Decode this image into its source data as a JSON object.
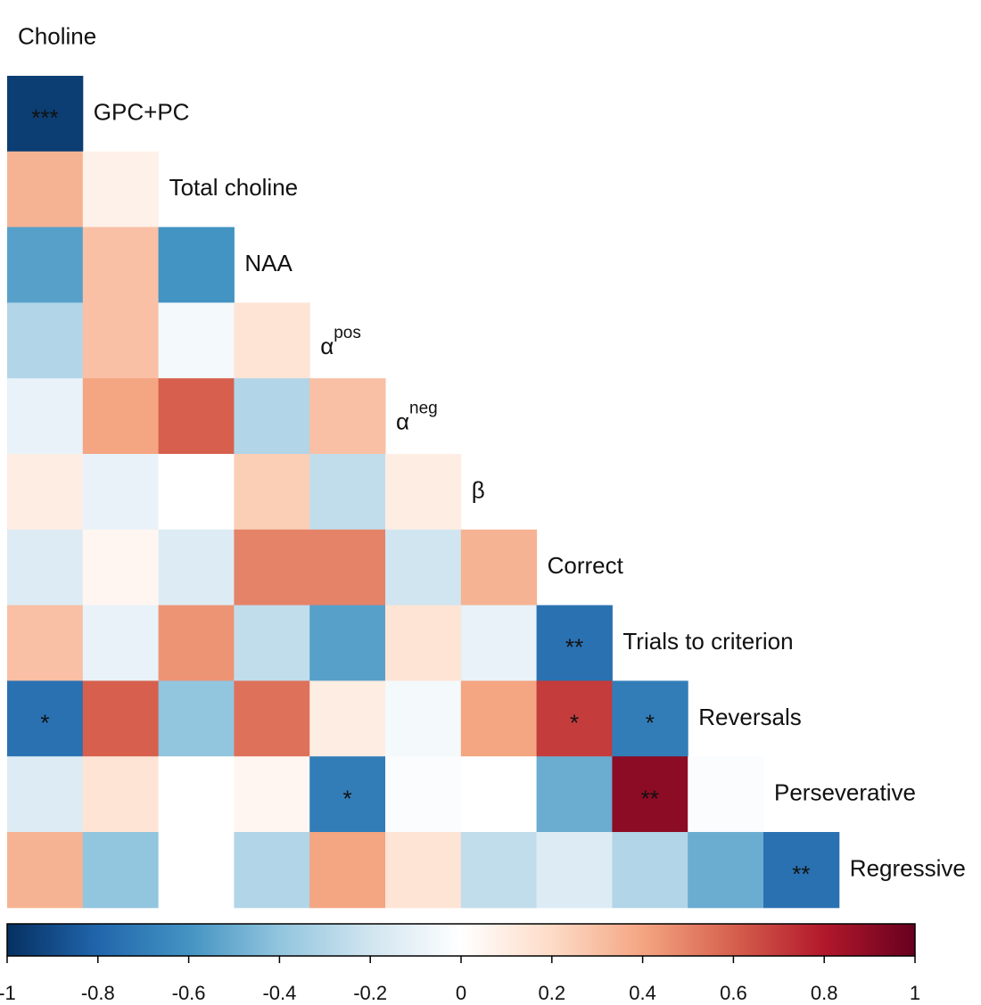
{
  "chart_data": {
    "type": "heatmap",
    "variables": [
      {
        "name": "Choline"
      },
      {
        "name": "GPC+PC"
      },
      {
        "name": "Total choline"
      },
      {
        "name": "NAA"
      },
      {
        "name": "α",
        "sup": "pos"
      },
      {
        "name": "α",
        "sup": "neg"
      },
      {
        "name": "β"
      },
      {
        "name": "Correct"
      },
      {
        "name": "Trials to criterion"
      },
      {
        "name": "Reversals"
      },
      {
        "name": "Perseverative"
      },
      {
        "name": "Regressive"
      }
    ],
    "rows": [
      {
        "values": [
          -0.95
        ],
        "stars": [
          "***"
        ]
      },
      {
        "values": [
          0.35,
          0.08
        ],
        "stars": [
          null,
          null
        ]
      },
      {
        "values": [
          -0.55,
          0.3,
          -0.6
        ],
        "stars": [
          null,
          null,
          null
        ]
      },
      {
        "values": [
          -0.3,
          0.3,
          -0.05,
          0.15
        ],
        "stars": [
          null,
          null,
          null,
          null
        ]
      },
      {
        "values": [
          -0.1,
          0.4,
          0.6,
          -0.3,
          0.3
        ],
        "stars": [
          null,
          null,
          null,
          null,
          null
        ]
      },
      {
        "values": [
          0.1,
          -0.1,
          0.0,
          0.25,
          -0.25,
          0.1
        ],
        "stars": [
          null,
          null,
          null,
          null,
          null,
          null
        ]
      },
      {
        "values": [
          -0.15,
          0.05,
          -0.15,
          0.5,
          0.5,
          -0.2,
          0.35
        ],
        "stars": [
          null,
          null,
          null,
          null,
          null,
          null,
          null
        ]
      },
      {
        "values": [
          0.3,
          -0.1,
          0.45,
          -0.25,
          -0.55,
          0.15,
          -0.1,
          -0.75
        ],
        "stars": [
          null,
          null,
          null,
          null,
          null,
          null,
          null,
          "**"
        ]
      },
      {
        "values": [
          -0.75,
          0.6,
          -0.4,
          0.55,
          0.1,
          -0.05,
          0.4,
          0.7,
          -0.7
        ],
        "stars": [
          "*",
          null,
          null,
          null,
          null,
          null,
          null,
          "*",
          "*"
        ]
      },
      {
        "values": [
          -0.15,
          0.15,
          0.0,
          0.05,
          -0.7,
          -0.02,
          0.0,
          -0.5,
          0.9,
          -0.02
        ],
        "stars": [
          null,
          null,
          null,
          null,
          "*",
          null,
          null,
          null,
          "**",
          null
        ]
      },
      {
        "values": [
          0.35,
          -0.4,
          0.0,
          -0.3,
          0.4,
          0.15,
          -0.25,
          -0.15,
          -0.3,
          -0.5,
          -0.75
        ],
        "stars": [
          null,
          null,
          null,
          null,
          null,
          null,
          null,
          null,
          null,
          null,
          "**"
        ]
      }
    ],
    "colormap": [
      "#053061",
      "#2166ac",
      "#4393c3",
      "#92c5de",
      "#d1e5f0",
      "#ffffff",
      "#fddbc7",
      "#f4a582",
      "#d6604d",
      "#b2182b",
      "#67001f"
    ],
    "clim": [
      -1,
      1
    ],
    "cticks": [
      -1,
      -0.8,
      -0.6,
      -0.4,
      -0.2,
      0,
      0.2,
      0.4,
      0.6,
      0.8,
      1
    ]
  }
}
